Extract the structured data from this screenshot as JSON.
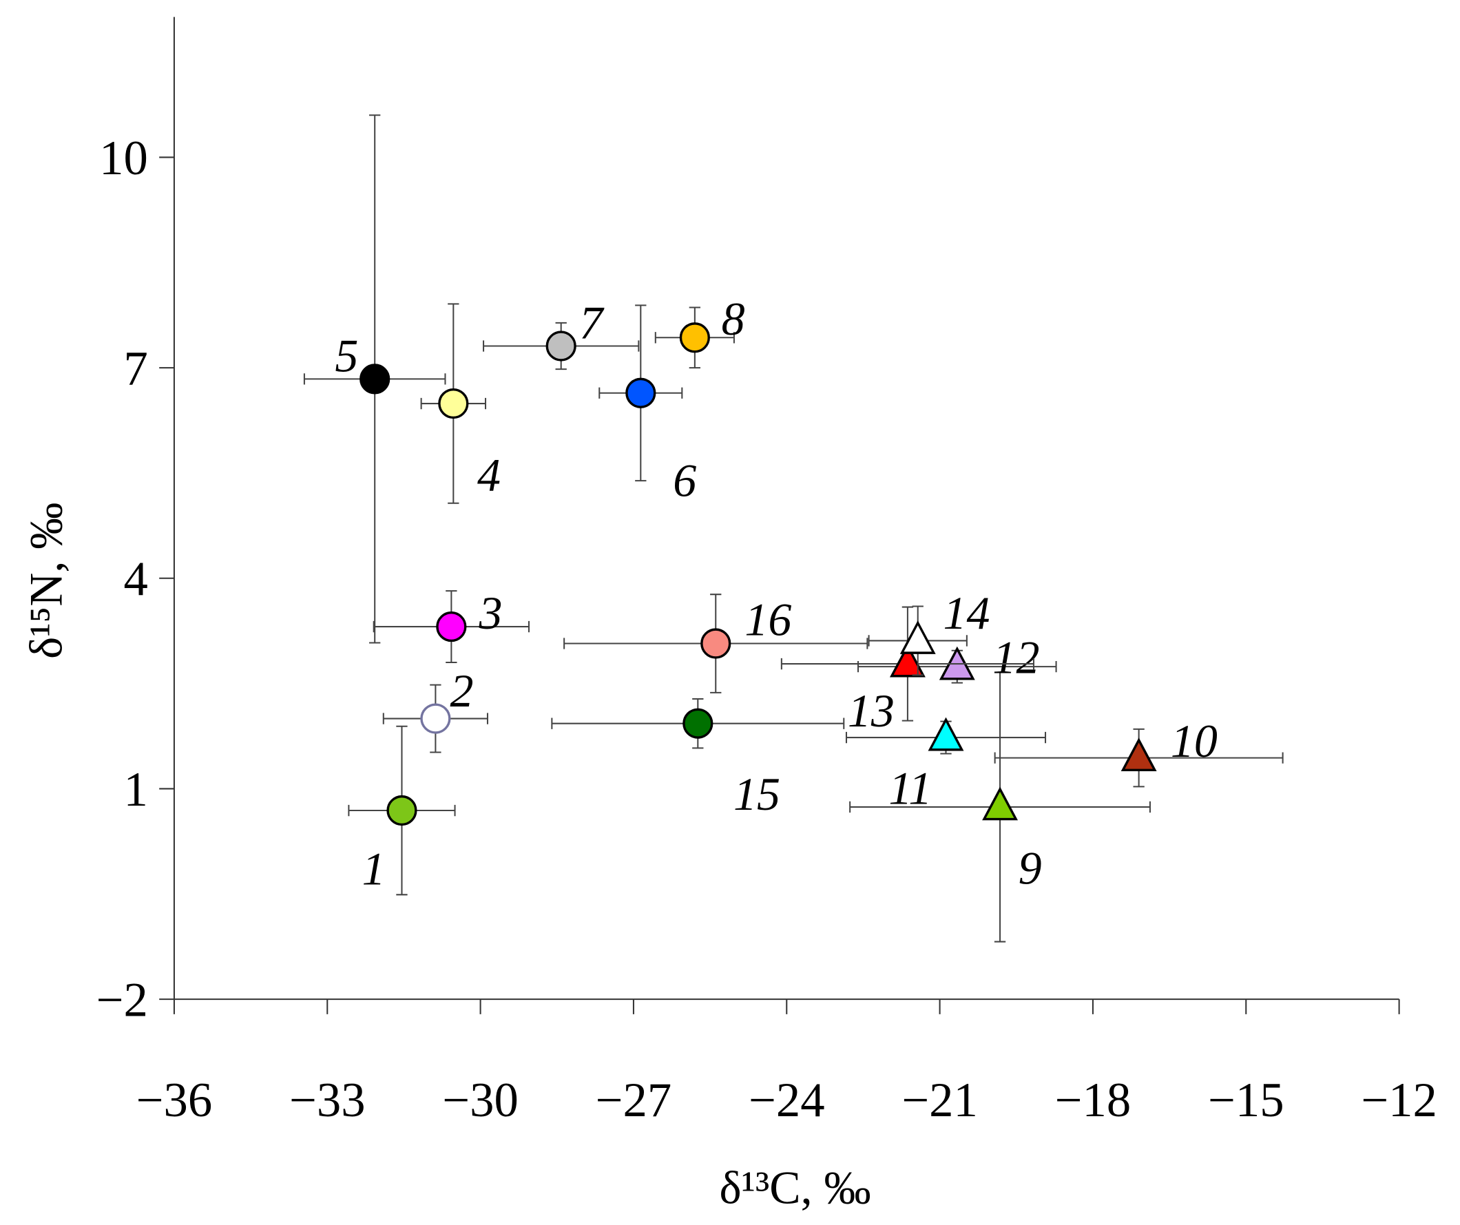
{
  "chart_data": {
    "type": "scatter",
    "xlabel": "δ¹³C, ‰",
    "ylabel": "δ¹⁵N, ‰",
    "xlim": [
      -36,
      -12
    ],
    "xticks": [
      {
        "value": -36,
        "label": "−36"
      },
      {
        "value": -33,
        "label": "−33"
      },
      {
        "value": -30,
        "label": "−30"
      },
      {
        "value": -27,
        "label": "−27"
      },
      {
        "value": -24,
        "label": "−24"
      },
      {
        "value": -21,
        "label": "−21"
      },
      {
        "value": -18,
        "label": "−18"
      },
      {
        "value": -15,
        "label": "−15"
      },
      {
        "value": -12,
        "label": "−12"
      }
    ],
    "ylim": [
      -2,
      12
    ],
    "yticks": [
      {
        "value": -2,
        "label": "−2"
      },
      1,
      4,
      7,
      10
    ],
    "points": [
      {
        "label": "1",
        "x": -31.54,
        "y": 0.69,
        "xerr": 1.04,
        "yerr": 1.2,
        "marker": "circle",
        "color": "#7dc618"
      },
      {
        "label": "2",
        "x": -30.88,
        "y": 2.0,
        "xerr": 1.02,
        "yerr": 0.48,
        "marker": "open-circle",
        "color": "#7474a0"
      },
      {
        "label": "3",
        "x": -30.57,
        "y": 3.31,
        "xerr": 1.52,
        "yerr": 0.51,
        "marker": "circle",
        "color": "#ff00ff"
      },
      {
        "label": "4",
        "x": -30.53,
        "y": 6.49,
        "xerr": 0.63,
        "yerr": 1.42,
        "marker": "circle",
        "color": "#ffff99"
      },
      {
        "label": "5",
        "x": -32.07,
        "y": 6.84,
        "xerr": 1.38,
        "yerr": 3.76,
        "marker": "circle",
        "color": "#000000"
      },
      {
        "label": "6",
        "x": -26.86,
        "y": 6.64,
        "xerr": 0.81,
        "yerr": 1.25,
        "marker": "circle",
        "color": "#0055ff"
      },
      {
        "label": "7",
        "x": -28.42,
        "y": 7.31,
        "xerr": 1.52,
        "yerr": 0.33,
        "marker": "circle",
        "color": "#bfbfbf"
      },
      {
        "label": "8",
        "x": -25.8,
        "y": 7.43,
        "xerr": 0.77,
        "yerr": 0.43,
        "marker": "circle",
        "color": "#ffc000"
      },
      {
        "label": "9",
        "x": -19.82,
        "y": 0.74,
        "xerr": 2.94,
        "yerr": 1.92,
        "marker": "triangle",
        "color": "#7fcc00"
      },
      {
        "label": "10",
        "x": -17.1,
        "y": 1.44,
        "xerr": 2.82,
        "yerr": 0.41,
        "marker": "triangle",
        "color": "#b03010"
      },
      {
        "label": "11",
        "x": -20.88,
        "y": 1.73,
        "xerr": 1.95,
        "yerr": 0.23,
        "marker": "triangle",
        "color": "#00ffff"
      },
      {
        "label": "12",
        "x": -20.66,
        "y": 2.74,
        "xerr": 1.94,
        "yerr": 0.23,
        "marker": "triangle",
        "color": "#cc99ee"
      },
      {
        "label": "13",
        "x": -21.63,
        "y": 2.78,
        "xerr": 2.47,
        "yerr": 0.81,
        "marker": "triangle",
        "color": "#ff0000"
      },
      {
        "label": "14",
        "x": -21.43,
        "y": 3.11,
        "xerr": 0.96,
        "yerr": 0.49,
        "marker": "triangle",
        "color": "#ffffff"
      },
      {
        "label": "15",
        "x": -25.74,
        "y": 1.93,
        "xerr": 2.86,
        "yerr": 0.35,
        "marker": "circle",
        "color": "#007000"
      },
      {
        "label": "16",
        "x": -25.39,
        "y": 3.07,
        "xerr": 2.97,
        "yerr": 0.7,
        "marker": "circle",
        "color": "#f88a80"
      }
    ]
  }
}
